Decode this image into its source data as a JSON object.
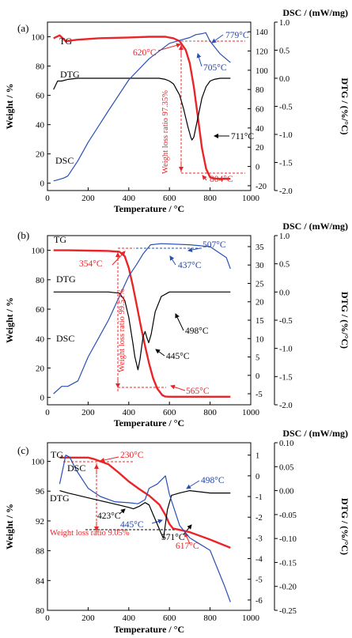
{
  "figure": {
    "panels": [
      {
        "tag": "(a)",
        "right_title": "DSC / (mW/mg)",
        "weight_label": "Weight / %",
        "dtg_label": "DTG / (%/°C)",
        "x_label": "Temperature / °C",
        "x_ticks": [
          "0",
          "200",
          "400",
          "600",
          "800",
          "1000"
        ],
        "weight_ticks": [
          "0",
          "20",
          "40",
          "60",
          "80",
          "100"
        ],
        "dsc_ticks": [
          "-20",
          "0",
          "20",
          "40",
          "60",
          "80",
          "100",
          "120",
          "140"
        ],
        "dtg_ticks": [
          "-2.0",
          "-1.5",
          "-1.0",
          "-0.5",
          "0.0",
          "0.5",
          "1.0"
        ],
        "series_labels": {
          "tg": "TG",
          "dtg": "DTG",
          "dsc": "DSC"
        },
        "annotations": [
          {
            "text": "779°C",
            "color": "#2244aa"
          },
          {
            "text": "620°C",
            "color": "#e8262a"
          },
          {
            "text": "705°C",
            "color": "#2244aa"
          },
          {
            "text": "711°C",
            "color": "#000000"
          },
          {
            "text": "804°C",
            "color": "#e8262a"
          },
          {
            "text": "Weight loss ratio 97.35%",
            "color": "#e8262a"
          }
        ]
      },
      {
        "tag": "(b)",
        "right_title": "DSC / (mW/mg)",
        "weight_label": "Weight / %",
        "dtg_label": "DTG / (%/°C)",
        "x_label": "Temperature / °C",
        "x_ticks": [
          "0",
          "200",
          "400",
          "600",
          "800",
          "1000"
        ],
        "weight_ticks": [
          "0",
          "20",
          "40",
          "60",
          "80",
          "100"
        ],
        "dsc_ticks": [
          "-5",
          "0",
          "5",
          "10",
          "15",
          "20",
          "25",
          "30",
          "35"
        ],
        "dtg_ticks": [
          "-2.0",
          "-1.5",
          "-1.0",
          "-0.5",
          "0.0",
          "0.5",
          "1.0"
        ],
        "series_labels": {
          "tg": "TG",
          "dtg": "DTG",
          "dsc": "DSC"
        },
        "annotations": [
          {
            "text": "507°C",
            "color": "#2244aa"
          },
          {
            "text": "354°C",
            "color": "#e8262a"
          },
          {
            "text": "437°C",
            "color": "#2244aa"
          },
          {
            "text": "498°C",
            "color": "#000000"
          },
          {
            "text": "445°C",
            "color": "#000000"
          },
          {
            "text": "565°C",
            "color": "#e8262a"
          },
          {
            "text": "Weight loss ratio 99.52%",
            "color": "#e8262a"
          }
        ]
      },
      {
        "tag": "(c)",
        "right_title": "DSC / (mW/mg)",
        "weight_label": "Weight / %",
        "dtg_label": "DTG / (%/°C)",
        "x_label": "Temperature / °C",
        "x_ticks": [
          "0",
          "200",
          "400",
          "600",
          "800",
          "1000"
        ],
        "weight_ticks": [
          "80",
          "84",
          "88",
          "92",
          "96",
          "100"
        ],
        "dsc_ticks": [
          "-6",
          "-5",
          "-4",
          "-3",
          "-2",
          "-1",
          "0",
          "1"
        ],
        "dtg_ticks": [
          "-0.25",
          "-0.20",
          "-0.15",
          "-0.10",
          "-0.05",
          "0.00",
          "0.05",
          "0.10"
        ],
        "series_labels": {
          "tg": "TG",
          "dtg": "DTG",
          "dsc": "DSC"
        },
        "annotations": [
          {
            "text": "230°C",
            "color": "#e8262a"
          },
          {
            "text": "498°C",
            "color": "#2244aa"
          },
          {
            "text": "423°C",
            "color": "#000000"
          },
          {
            "text": "445°C",
            "color": "#2244aa"
          },
          {
            "text": "571°C",
            "color": "#000000"
          },
          {
            "text": "617°C",
            "color": "#e8262a"
          },
          {
            "text": "Weight loss ratio 9.05%",
            "color": "#e8262a"
          }
        ]
      }
    ]
  },
  "chart_data": [
    {
      "type": "line",
      "panel": "(a)",
      "colors": {
        "tg": "#e8262a",
        "dtg": "#000000",
        "dsc": "#2a4fb5"
      },
      "xlim": [
        0,
        1000
      ],
      "y_weight": [
        -5,
        110
      ],
      "y_dsc": [
        -25,
        150
      ],
      "y_dtg": [
        -2.0,
        1.0
      ],
      "series": [
        {
          "name": "TG",
          "axis": "weight",
          "x": [
            30,
            60,
            90,
            150,
            250,
            400,
            500,
            580,
            620,
            650,
            680,
            700,
            720,
            740,
            760,
            780,
            800,
            820,
            850,
            900
          ],
          "y": [
            99,
            101,
            97,
            98,
            99,
            99.5,
            100,
            100,
            99,
            97,
            91,
            82,
            66,
            45,
            24,
            10,
            4,
            3.2,
            3,
            3
          ]
        },
        {
          "name": "DTG",
          "axis": "dtg",
          "x": [
            30,
            50,
            70,
            100,
            150,
            200,
            300,
            400,
            500,
            550,
            580,
            600,
            620,
            650,
            670,
            690,
            705,
            711,
            720,
            740,
            760,
            780,
            800,
            820,
            850,
            900
          ],
          "y": [
            -0.2,
            -0.05,
            -0.05,
            -0.02,
            0,
            0,
            0,
            0,
            0,
            0,
            -0.02,
            -0.05,
            -0.1,
            -0.3,
            -0.55,
            -0.85,
            -1.05,
            -1.1,
            -1.05,
            -0.7,
            -0.35,
            -0.15,
            -0.05,
            -0.02,
            0,
            0
          ]
        },
        {
          "name": "DSC",
          "axis": "dsc",
          "x": [
            30,
            50,
            80,
            100,
            150,
            200,
            300,
            400,
            500,
            600,
            650,
            700,
            730,
            760,
            779,
            800,
            850,
            900
          ],
          "y": [
            -15,
            -14,
            -12,
            -10,
            6,
            25,
            58,
            90,
            112,
            128,
            131,
            134,
            137,
            138,
            139,
            130,
            117,
            108
          ]
        }
      ]
    },
    {
      "type": "line",
      "panel": "(b)",
      "colors": {
        "tg": "#e8262a",
        "dtg": "#000000",
        "dsc": "#2a4fb5"
      },
      "xlim": [
        0,
        1000
      ],
      "y_weight": [
        -5,
        110
      ],
      "y_dsc": [
        -8,
        38
      ],
      "y_dtg": [
        -2.0,
        1.0
      ],
      "series": [
        {
          "name": "TG",
          "axis": "weight",
          "x": [
            30,
            100,
            200,
            300,
            354,
            380,
            400,
            420,
            440,
            460,
            480,
            500,
            520,
            540,
            565,
            580,
            600,
            900
          ],
          "y": [
            100,
            100,
            99.8,
            99.6,
            99,
            96,
            88,
            76,
            62,
            48,
            35,
            23,
            13,
            6,
            1.5,
            0.6,
            0.5,
            0.5
          ]
        },
        {
          "name": "DTG",
          "axis": "dtg",
          "x": [
            30,
            100,
            200,
            300,
            354,
            380,
            400,
            420,
            430,
            440,
            445,
            455,
            470,
            480,
            490,
            498,
            510,
            530,
            560,
            600,
            900
          ],
          "y": [
            0,
            0,
            0,
            0,
            -0.02,
            -0.15,
            -0.45,
            -0.9,
            -1.15,
            -1.3,
            -1.38,
            -1.2,
            -0.8,
            -0.7,
            -0.82,
            -0.9,
            -0.75,
            -0.35,
            -0.08,
            0,
            0
          ]
        },
        {
          "name": "DSC",
          "axis": "dsc",
          "x": [
            30,
            70,
            100,
            150,
            200,
            300,
            400,
            437,
            470,
            507,
            560,
            700,
            800,
            880,
            900
          ],
          "y": [
            -5,
            -3,
            -3,
            -1.5,
            5,
            15,
            27,
            30,
            33,
            35.5,
            35.8,
            35.5,
            35,
            32,
            29
          ]
        }
      ]
    },
    {
      "type": "line",
      "panel": "(c)",
      "colors": {
        "tg": "#e8262a",
        "dtg": "#000000",
        "dsc": "#2a4fb5"
      },
      "xlim": [
        0,
        1000
      ],
      "y_weight": [
        80,
        102.5
      ],
      "y_dsc": [
        -6.5,
        1.6
      ],
      "y_dtg": [
        -0.25,
        0.1
      ],
      "series": [
        {
          "name": "TG",
          "axis": "weight",
          "x": [
            60,
            100,
            200,
            230,
            300,
            350,
            400,
            450,
            500,
            550,
            580,
            600,
            617,
            650,
            700,
            800,
            900
          ],
          "y": [
            100.5,
            100.5,
            100.5,
            100.3,
            99.6,
            98.5,
            97.3,
            96.3,
            95.4,
            94.2,
            92.8,
            91.6,
            91,
            90.8,
            90.5,
            89.5,
            88.4
          ]
        },
        {
          "name": "DTG",
          "axis": "dtg",
          "x": [
            60,
            100,
            150,
            200,
            250,
            300,
            350,
            400,
            423,
            450,
            480,
            500,
            520,
            540,
            560,
            571,
            590,
            610,
            650,
            700,
            800,
            900
          ],
          "y": [
            0,
            -0.005,
            -0.01,
            -0.015,
            -0.02,
            -0.025,
            -0.03,
            -0.035,
            -0.038,
            -0.033,
            -0.025,
            -0.03,
            -0.05,
            -0.07,
            -0.09,
            -0.1,
            -0.04,
            -0.01,
            -0.005,
            0,
            -0.005,
            -0.005
          ]
        },
        {
          "name": "DSC",
          "axis": "dsc",
          "x": [
            60,
            75,
            90,
            110,
            140,
            200,
            260,
            330,
            400,
            445,
            480,
            500,
            540,
            580,
            600,
            650,
            700,
            800,
            870,
            900
          ],
          "y": [
            -0.4,
            0.3,
            1.0,
            0.9,
            0.3,
            -0.6,
            -1.0,
            -1.25,
            -1.3,
            -1.35,
            -1.15,
            -0.6,
            -0.4,
            0.0,
            -0.9,
            -2.4,
            -3.0,
            -3.6,
            -5.3,
            -6.1
          ]
        }
      ]
    }
  ]
}
